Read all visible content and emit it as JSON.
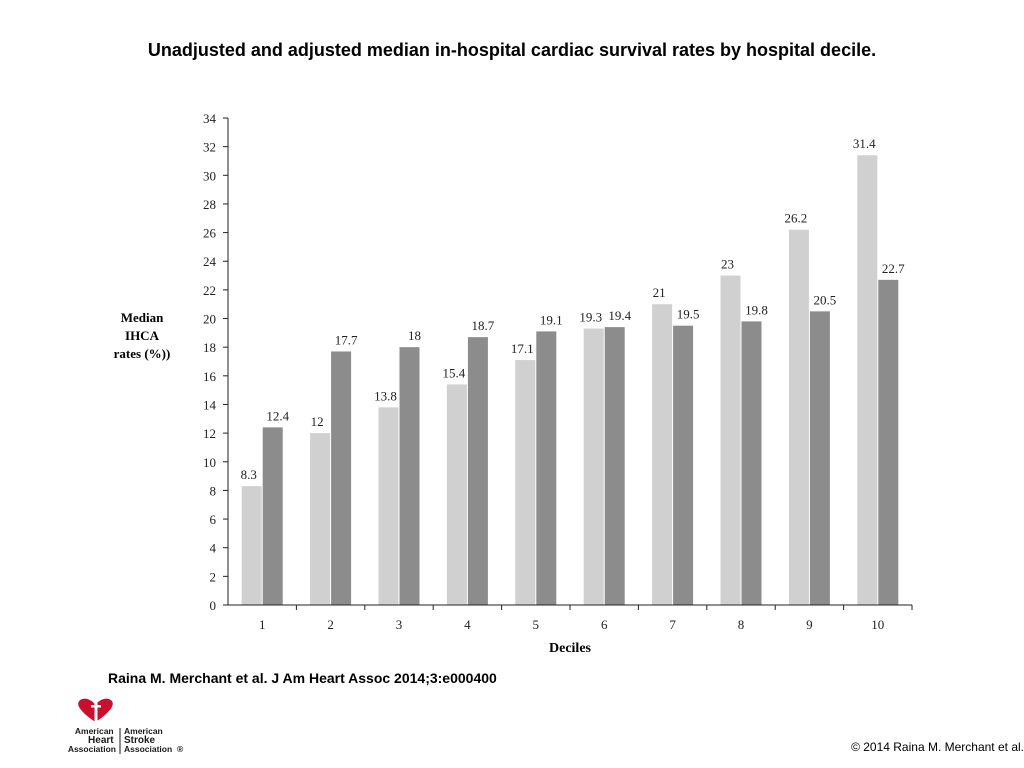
{
  "title": "Unadjusted and adjusted median in-hospital cardiac survival rates by hospital decile.",
  "citation": "Raina M. Merchant et al. J Am Heart Assoc 2014;3:e000400",
  "copyright": "© 2014 Raina M. Merchant et al.",
  "logo": {
    "left_lines": [
      "American",
      "Heart",
      "Association"
    ],
    "right_lines": [
      "American",
      "Stroke",
      "Association"
    ],
    "trademark": "®"
  },
  "chart_data": {
    "type": "bar",
    "title": "",
    "xlabel": "Deciles",
    "ylabel_lines": [
      "Median",
      "IHCA",
      "rates (%))"
    ],
    "ylim": [
      0,
      34
    ],
    "ytick_step": 2,
    "grid": false,
    "legend": "none",
    "categories": [
      "1",
      "2",
      "3",
      "4",
      "5",
      "6",
      "7",
      "8",
      "9",
      "10"
    ],
    "series": [
      {
        "values": [
          8.3,
          12,
          13.8,
          15.4,
          17.1,
          19.3,
          21,
          23,
          26.2,
          31.4
        ],
        "labels": [
          "8.3",
          "12",
          "13.8",
          "15.4",
          "17.1",
          "19.3",
          "21",
          "23",
          "26.2",
          "31.4"
        ],
        "color": "#d0d0d0"
      },
      {
        "values": [
          12.4,
          17.7,
          18,
          18.7,
          19.1,
          19.4,
          19.5,
          19.8,
          20.5,
          22.7
        ],
        "labels": [
          "12.4",
          "17.7",
          "18",
          "18.7",
          "19.1",
          "19.4",
          "19.5",
          "19.8",
          "20.5",
          "22.7"
        ],
        "color": "#8c8c8c"
      }
    ]
  }
}
